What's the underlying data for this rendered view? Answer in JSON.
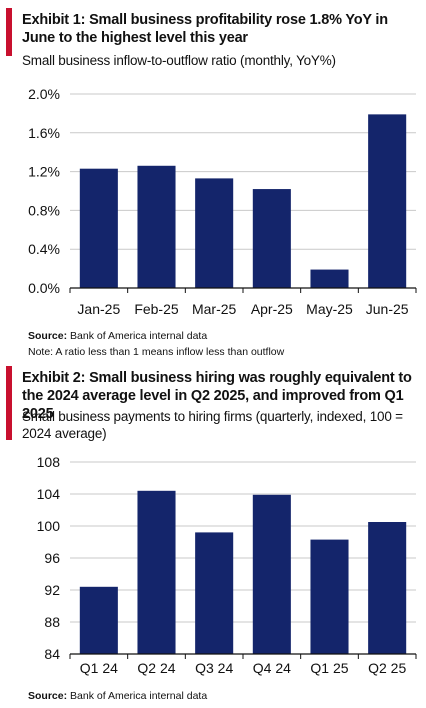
{
  "colors": {
    "accent": "#c8102e",
    "bar": "#14256b",
    "grid": "#c9c9c9",
    "axis": "#111111"
  },
  "exhibit1": {
    "title": "Exhibit 1: Small business profitability rose 1.8% YoY in June to the highest level this year",
    "subtitle": "Small business inflow-to-outflow ratio (monthly, YoY%)",
    "source_label": "Source:",
    "source_text": " Bank of America internal data",
    "note": "Note: A ratio less than 1 means inflow less than outflow"
  },
  "exhibit2": {
    "title": "Exhibit 2: Small business hiring was roughly equivalent to the 2024 average level in Q2 2025, and improved from Q1 2025",
    "subtitle": "Small business payments to hiring firms (quarterly, indexed, 100 = 2024 average)",
    "source_label": "Source:",
    "source_text": " Bank of America internal data"
  },
  "chart_data": [
    {
      "type": "bar",
      "title": "Exhibit 1: Small business profitability rose 1.8% YoY in June to the highest level this year",
      "subtitle": "Small business inflow-to-outflow ratio (monthly, YoY%)",
      "categories": [
        "Jan-25",
        "Feb-25",
        "Mar-25",
        "Apr-25",
        "May-25",
        "Jun-25"
      ],
      "values": [
        1.23,
        1.26,
        1.13,
        1.02,
        0.19,
        1.79
      ],
      "ylim": [
        0,
        2.0
      ],
      "yticks": [
        0,
        0.4,
        0.8,
        1.2,
        1.6,
        2.0
      ],
      "ytick_labels": [
        "0.0%",
        "0.4%",
        "0.8%",
        "1.2%",
        "1.6%",
        "2.0%"
      ],
      "grid": true,
      "xlabel": "",
      "ylabel": ""
    },
    {
      "type": "bar",
      "title": "Exhibit 2: Small business hiring was roughly equivalent to the 2024 average level in Q2 2025, and improved from Q1 2025",
      "subtitle": "Small business payments to hiring firms (quarterly, indexed, 100 = 2024 average)",
      "categories": [
        "Q1 24",
        "Q2 24",
        "Q3 24",
        "Q4 24",
        "Q1 25",
        "Q2 25"
      ],
      "values": [
        92.4,
        104.4,
        99.2,
        103.9,
        98.3,
        100.5
      ],
      "ylim": [
        84,
        108
      ],
      "yticks": [
        84,
        88,
        92,
        96,
        100,
        104,
        108
      ],
      "ytick_labels": [
        "84",
        "88",
        "92",
        "96",
        "100",
        "104",
        "108"
      ],
      "grid": true,
      "xlabel": "",
      "ylabel": ""
    }
  ]
}
